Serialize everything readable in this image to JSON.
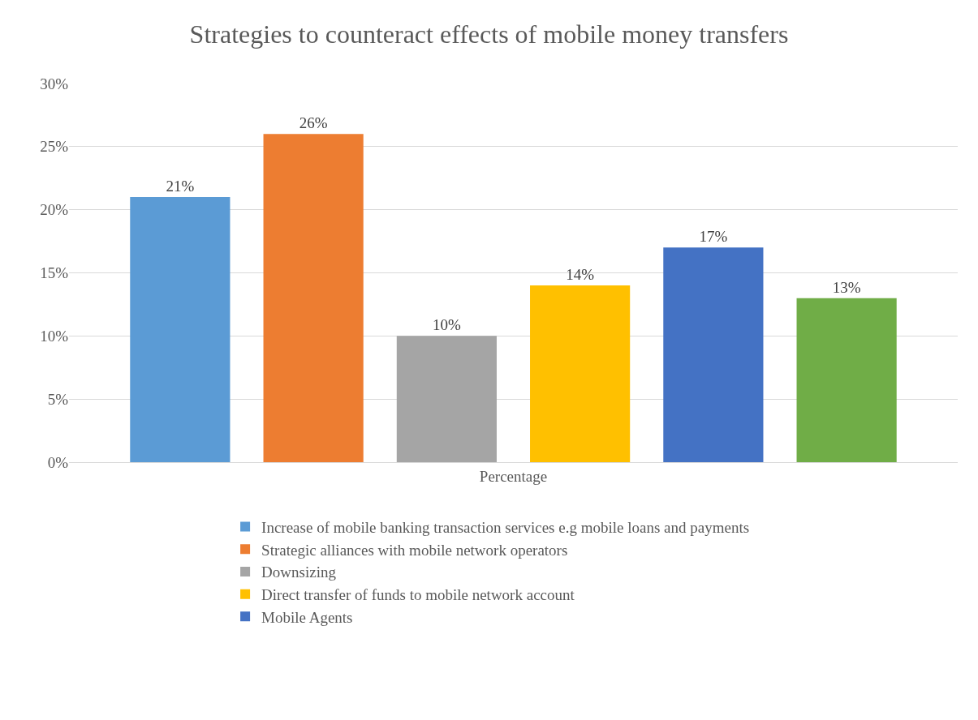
{
  "chart_data": {
    "type": "bar",
    "title": "Strategies to counteract effects of mobile money transfers",
    "categories": [
      "Percentage"
    ],
    "series": [
      {
        "name": "Increase of mobile banking transaction services e.g mobile loans and payments",
        "color": "#5b9bd5",
        "values": [
          21
        ],
        "value_labels": [
          "21%"
        ]
      },
      {
        "name": "Strategic alliances with mobile network operators",
        "color": "#ed7d31",
        "values": [
          26
        ],
        "value_labels": [
          "26%"
        ]
      },
      {
        "name": "Downsizing",
        "color": "#a5a5a5",
        "values": [
          10
        ],
        "value_labels": [
          "10%"
        ]
      },
      {
        "name": "Direct transfer of funds to mobile network account",
        "color": "#ffc000",
        "values": [
          14
        ],
        "value_labels": [
          "14%"
        ]
      },
      {
        "name": "Mobile Agents",
        "color": "#4472c4",
        "values": [
          17
        ],
        "value_labels": [
          "17%"
        ]
      },
      {
        "color": "#70ad47",
        "values": [
          13
        ],
        "value_labels": [
          "13%"
        ]
      }
    ],
    "ylim": [
      0,
      30
    ],
    "yticks": [
      {
        "value": 0,
        "label": "0%"
      },
      {
        "value": 5,
        "label": "5%"
      },
      {
        "value": 10,
        "label": "10%"
      },
      {
        "value": 15,
        "label": "15%"
      },
      {
        "value": 20,
        "label": "20%"
      },
      {
        "value": 25,
        "label": "25%"
      },
      {
        "value": 30,
        "label": "30%"
      }
    ],
    "grid": "y",
    "legend": "bottom"
  }
}
